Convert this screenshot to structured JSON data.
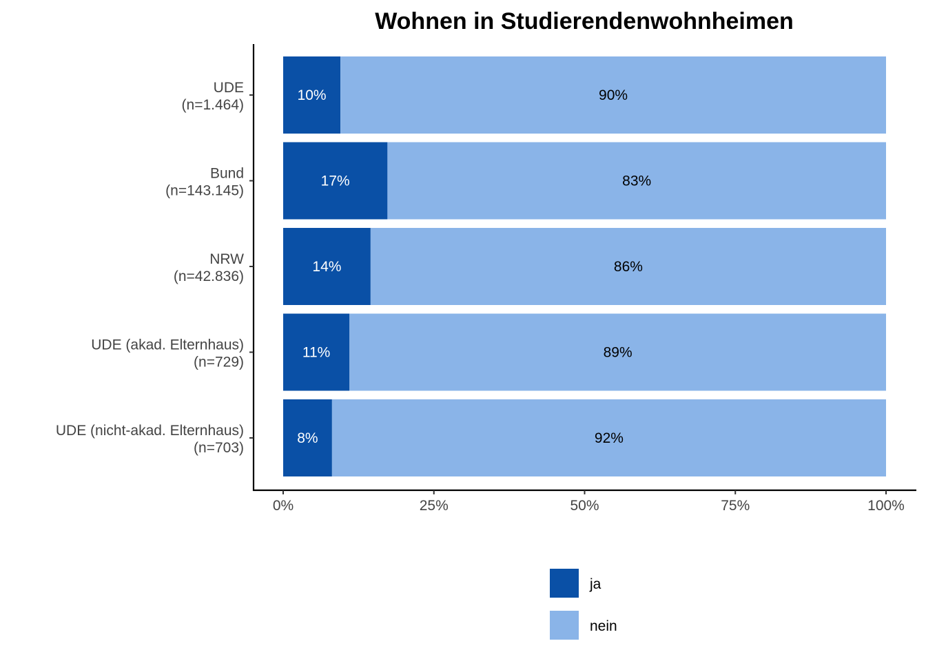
{
  "chart_data": {
    "type": "bar",
    "orientation": "horizontal",
    "stacked": true,
    "title": "Wohnen in Studierendenwohnheimen",
    "xlabel": "",
    "ylabel": "",
    "categories": [
      [
        "UDE",
        "(n=1.464)"
      ],
      [
        "Bund",
        "(n=143.145)"
      ],
      [
        "NRW",
        "(n=42.836)"
      ],
      [
        "UDE (akad. Elternhaus)",
        "(n=729)"
      ],
      [
        "UDE (nicht-akad. Elternhaus)",
        "(n=703)"
      ]
    ],
    "series": [
      {
        "name": "ja",
        "color": "#0a50a6",
        "label_color": "#ffffff",
        "values": [
          9.5,
          17.3,
          14.5,
          11.0,
          8.1
        ],
        "labels": [
          "10%",
          "17%",
          "14%",
          "11%",
          "8%"
        ]
      },
      {
        "name": "nein",
        "color": "#8ab4e8",
        "label_color": "#000000",
        "values": [
          90.5,
          82.7,
          85.5,
          89.0,
          91.9
        ],
        "labels": [
          "90%",
          "83%",
          "86%",
          "89%",
          "92%"
        ]
      }
    ],
    "xlim": [
      0,
      100
    ],
    "xticks": [
      0,
      25,
      50,
      75,
      100
    ],
    "xtick_labels": [
      "0%",
      "25%",
      "50%",
      "75%",
      "100%"
    ],
    "grid": false,
    "legend_position": "bottom"
  }
}
